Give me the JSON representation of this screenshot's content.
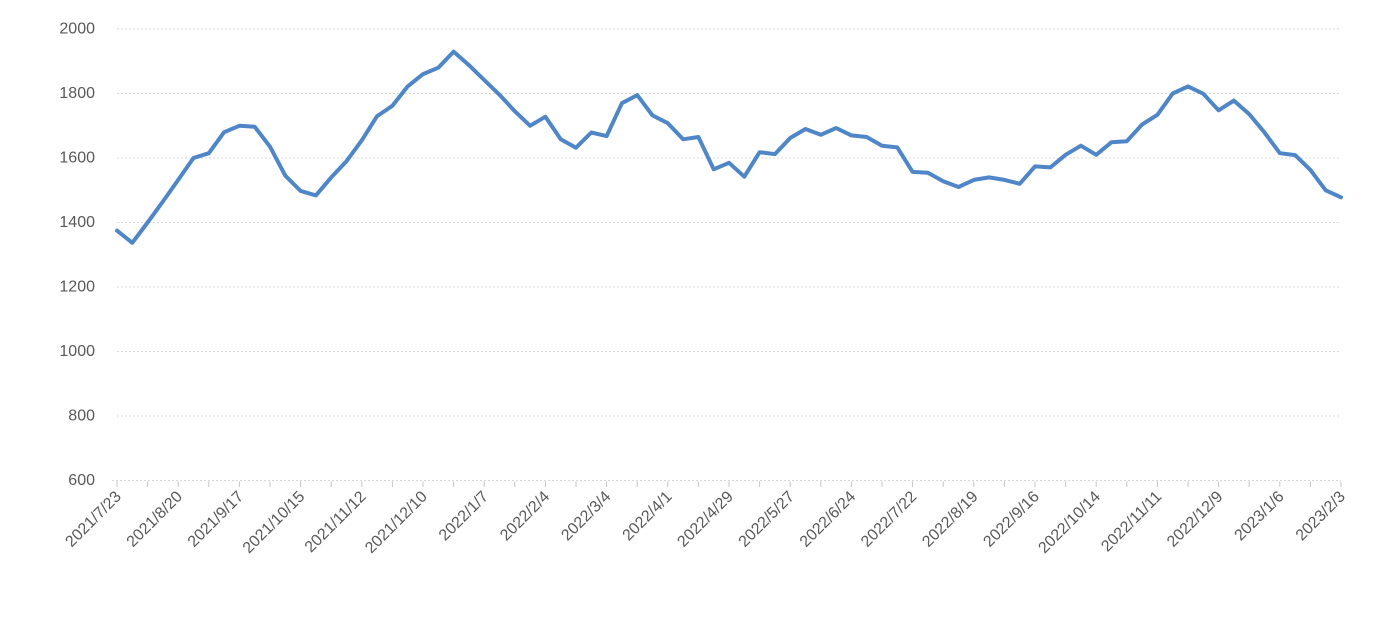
{
  "chart_data": {
    "type": "line",
    "title": "",
    "legend_position": "none",
    "x": [
      "2021/7/23",
      "2021/7/30",
      "2021/8/6",
      "2021/8/13",
      "2021/8/20",
      "2021/8/27",
      "2021/9/3",
      "2021/9/10",
      "2021/9/17",
      "2021/9/24",
      "2021/10/1",
      "2021/10/8",
      "2021/10/15",
      "2021/10/22",
      "2021/10/29",
      "2021/11/5",
      "2021/11/12",
      "2021/11/19",
      "2021/11/26",
      "2021/12/3",
      "2021/12/10",
      "2021/12/17",
      "2021/12/24",
      "2021/12/31",
      "2022/1/7",
      "2022/1/14",
      "2022/1/21",
      "2022/1/28",
      "2022/2/4",
      "2022/2/11",
      "2022/2/18",
      "2022/2/25",
      "2022/3/4",
      "2022/3/11",
      "2022/3/18",
      "2022/3/25",
      "2022/4/1",
      "2022/4/8",
      "2022/4/15",
      "2022/4/22",
      "2022/4/29",
      "2022/5/6",
      "2022/5/13",
      "2022/5/20",
      "2022/5/27",
      "2022/6/3",
      "2022/6/10",
      "2022/6/17",
      "2022/6/24",
      "2022/7/1",
      "2022/7/8",
      "2022/7/15",
      "2022/7/22",
      "2022/7/29",
      "2022/8/5",
      "2022/8/12",
      "2022/8/19",
      "2022/8/26",
      "2022/9/2",
      "2022/9/9",
      "2022/9/16",
      "2022/9/23",
      "2022/9/30",
      "2022/10/7",
      "2022/10/14",
      "2022/10/21",
      "2022/10/28",
      "2022/11/4",
      "2022/11/11",
      "2022/11/18",
      "2022/11/25",
      "2022/12/2",
      "2022/12/9",
      "2022/12/16",
      "2022/12/23",
      "2022/12/30",
      "2023/1/6",
      "2023/1/13",
      "2023/1/20",
      "2023/1/27",
      "2023/2/3"
    ],
    "series": [
      {
        "name": "",
        "color": "#4E86C8",
        "stroke_width": 4,
        "values": [
          1375,
          1337,
          1400,
          1465,
          1532,
          1600,
          1615,
          1680,
          1700,
          1697,
          1635,
          1545,
          1498,
          1484,
          1540,
          1590,
          1655,
          1730,
          1762,
          1822,
          1860,
          1880,
          1930,
          1888,
          1842,
          1796,
          1745,
          1700,
          1728,
          1658,
          1632,
          1679,
          1668,
          1770,
          1795,
          1732,
          1708,
          1658,
          1665,
          1565,
          1585,
          1542,
          1618,
          1612,
          1662,
          1690,
          1672,
          1693,
          1670,
          1665,
          1638,
          1633,
          1557,
          1554,
          1528,
          1510,
          1532,
          1540,
          1532,
          1520,
          1574,
          1571,
          1610,
          1638,
          1610,
          1649,
          1652,
          1704,
          1734,
          1800,
          1822,
          1799,
          1748,
          1778,
          1736,
          1679,
          1615,
          1609,
          1563,
          1500,
          1478
        ]
      }
    ],
    "x_axis": {
      "labels_shown": [
        "2021/7/23",
        "2021/8/20",
        "2021/9/17",
        "2021/10/15",
        "2021/11/12",
        "2021/12/10",
        "2022/1/7",
        "2022/2/4",
        "2022/3/4",
        "2022/4/1",
        "2022/4/29",
        "2022/5/27",
        "2022/6/24",
        "2022/7/22",
        "2022/8/19",
        "2022/9/16",
        "2022/10/14",
        "2022/11/11",
        "2022/12/9",
        "2023/1/6",
        "2023/2/3"
      ],
      "label_every_n_points": 4,
      "tick_every_n_points": 2,
      "label_rotation_deg": -45
    },
    "y_axis": {
      "min": 600,
      "max": 2000,
      "step": 200,
      "tick_labels": [
        "600",
        "800",
        "1000",
        "1200",
        "1400",
        "1600",
        "1800",
        "2000"
      ]
    },
    "grid": {
      "horizontal": true,
      "vertical": false,
      "style": "dashed",
      "color": "#D9D9D9"
    },
    "colors": {
      "background": "#FFFFFF",
      "axis_text": "#595959",
      "axis_line": "#D5D5D5",
      "tick": "#C3C3C3"
    }
  }
}
